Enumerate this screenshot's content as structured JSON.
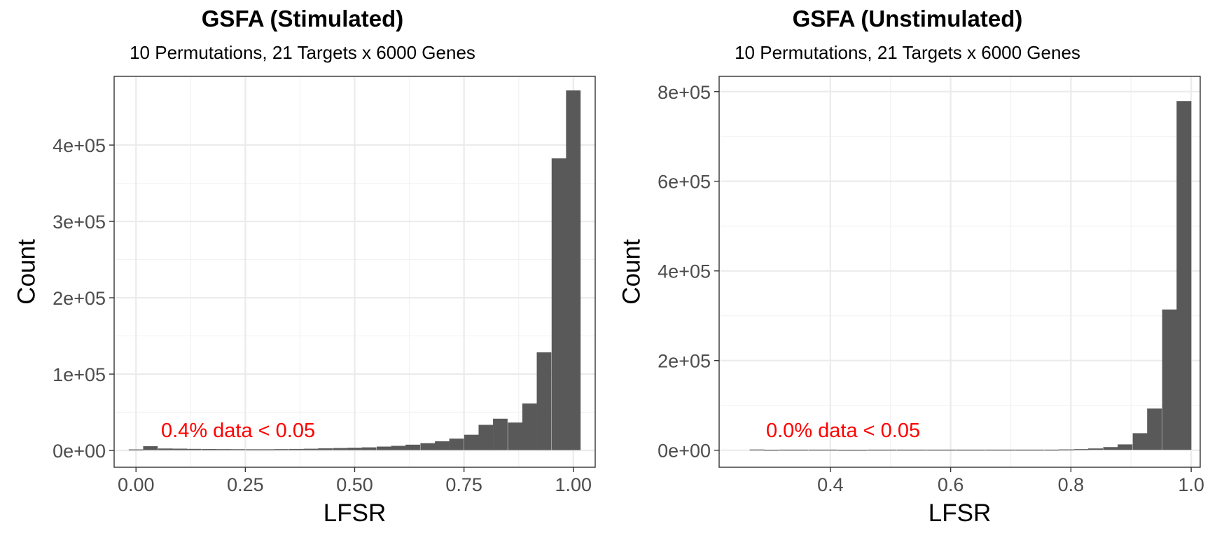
{
  "chart_data": [
    {
      "type": "bar",
      "title": "GSFA (Stimulated)",
      "subtitle": "10 Permutations, 21 Targets x 6000 Genes",
      "xlabel": "LFSR",
      "ylabel": "Count",
      "xlim": [
        -0.05,
        1.05
      ],
      "ylim": [
        -22000,
        490000
      ],
      "xticks": [
        0.0,
        0.25,
        0.5,
        0.75,
        1.0
      ],
      "xtick_labels": [
        "0.00",
        "0.25",
        "0.50",
        "0.75",
        "1.00"
      ],
      "yticks": [
        0,
        100000,
        200000,
        300000,
        400000
      ],
      "ytick_labels": [
        "0e+00",
        "1e+05",
        "2e+05",
        "3e+05",
        "4e+05"
      ],
      "bin_width": 0.0333,
      "bin_centers": [
        0.0,
        0.033,
        0.067,
        0.1,
        0.133,
        0.167,
        0.2,
        0.233,
        0.267,
        0.3,
        0.333,
        0.367,
        0.4,
        0.433,
        0.467,
        0.5,
        0.533,
        0.567,
        0.6,
        0.633,
        0.667,
        0.7,
        0.733,
        0.767,
        0.8,
        0.833,
        0.867,
        0.9,
        0.933,
        0.967,
        1.0
      ],
      "values": [
        800,
        5000,
        2000,
        1800,
        1500,
        1300,
        1200,
        1100,
        1000,
        1000,
        1200,
        1400,
        1700,
        2200,
        2600,
        3000,
        3500,
        4500,
        5500,
        7000,
        9000,
        11500,
        15000,
        20000,
        33000,
        41000,
        36000,
        61000,
        128000,
        382000,
        471000
      ],
      "annotation": "0.4% data < 0.05",
      "annotation_color": "#ff0000",
      "bar_color": "#595959",
      "grid": true
    },
    {
      "type": "bar",
      "title": "GSFA (Unstimulated)",
      "subtitle": "10 Permutations, 21 Targets x 6000 Genes",
      "xlabel": "LFSR",
      "ylabel": "Count",
      "xlim": [
        0.215,
        1.015
      ],
      "ylim": [
        -38000,
        834000
      ],
      "xticks": [
        0.4,
        0.6,
        0.8,
        1.0
      ],
      "xtick_labels": [
        "0.4",
        "0.6",
        "0.8",
        "1.0"
      ],
      "yticks": [
        0,
        200000,
        400000,
        600000,
        800000
      ],
      "ytick_labels": [
        "0e+00",
        "2e+05",
        "4e+05",
        "6e+05",
        "8e+05"
      ],
      "bin_width": 0.0245,
      "bin_centers": [
        0.278,
        0.302,
        0.327,
        0.351,
        0.376,
        0.4,
        0.425,
        0.449,
        0.474,
        0.498,
        0.523,
        0.547,
        0.572,
        0.596,
        0.621,
        0.645,
        0.67,
        0.694,
        0.719,
        0.743,
        0.768,
        0.792,
        0.817,
        0.841,
        0.866,
        0.89,
        0.915,
        0.939,
        0.964,
        0.988
      ],
      "values": [
        600,
        0,
        300,
        300,
        300,
        300,
        0,
        0,
        300,
        300,
        300,
        300,
        300,
        300,
        300,
        300,
        300,
        300,
        300,
        300,
        300,
        800,
        1500,
        3000,
        6000,
        12000,
        37000,
        92000,
        313000,
        778000
      ],
      "annotation": "0.0% data < 0.05",
      "annotation_color": "#ff0000",
      "bar_color": "#595959",
      "grid": true
    }
  ]
}
